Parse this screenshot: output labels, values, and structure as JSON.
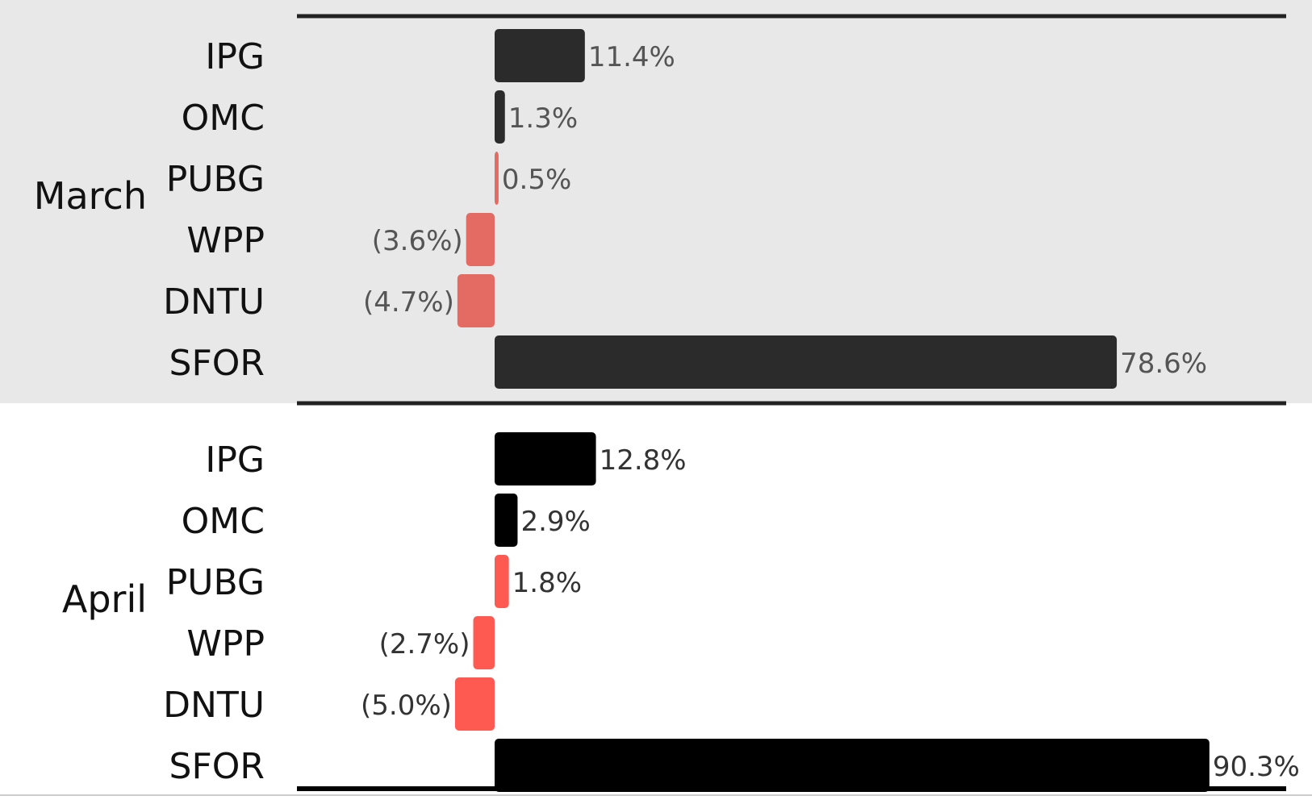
{
  "chart_data": {
    "type": "bar",
    "orientation": "horizontal",
    "grid": false,
    "legend": "none",
    "groups": [
      {
        "name": "March",
        "categories": [
          "IPG",
          "OMC",
          "PUBG",
          "WPP",
          "DNTU",
          "SFOR"
        ],
        "values": [
          11.4,
          1.3,
          0.5,
          -3.6,
          -4.7,
          78.6
        ],
        "labels": [
          "11.4%",
          "1.3%",
          "0.5%",
          "(3.6%)",
          "(4.7%)",
          "78.6%"
        ]
      },
      {
        "name": "April",
        "categories": [
          "IPG",
          "OMC",
          "PUBG",
          "WPP",
          "DNTU",
          "SFOR"
        ],
        "values": [
          12.8,
          2.9,
          1.8,
          -2.7,
          -5.0,
          90.3
        ],
        "labels": [
          "12.8%",
          "2.9%",
          "1.8%",
          "(2.7%)",
          "(5.0%)",
          "90.3%"
        ]
      }
    ],
    "xlim": [
      -25,
      100
    ],
    "colors": {
      "march_background": "#e8e8e8",
      "april_background": "#ffffff",
      "march_positive": "#2b2b2b",
      "march_negative": "#e46a64",
      "march_pubg": "#e46a64",
      "april_positive": "#000000",
      "april_negative": "#ff5a52",
      "april_pubg": "#ff5a52",
      "march_label": "#555555",
      "april_label": "#333333",
      "rule": "#222222",
      "rule_bottom": "#000000"
    }
  }
}
